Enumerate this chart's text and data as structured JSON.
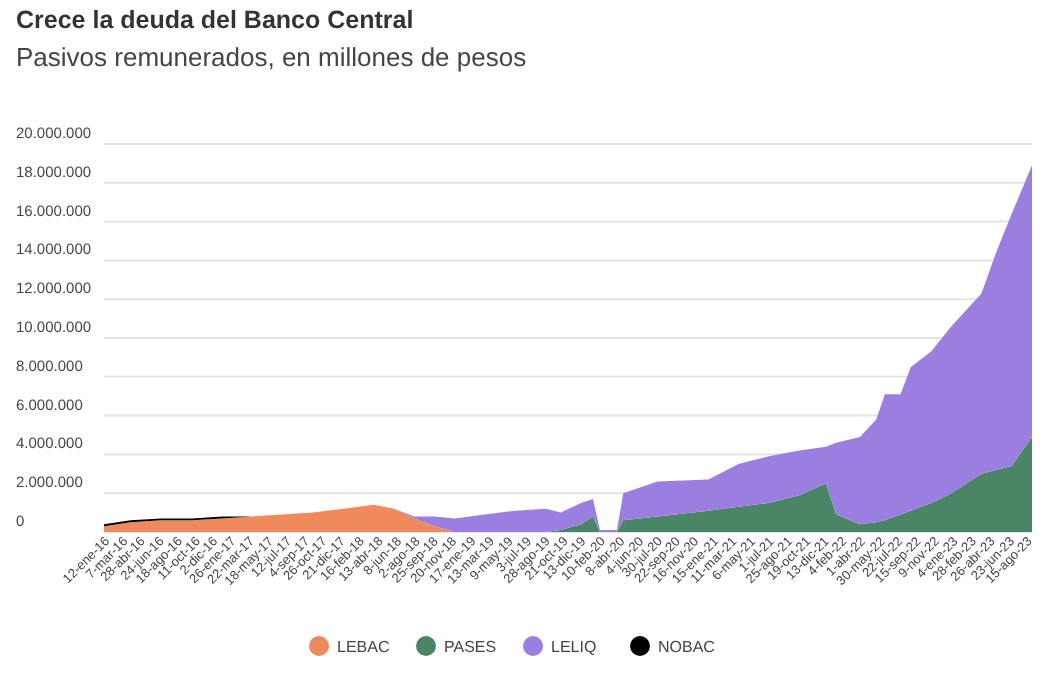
{
  "chart_data": {
    "type": "area",
    "stacked": true,
    "title": "Crece la deuda del Banco Central",
    "subtitle": "Pasivos remunerados, en millones de pesos",
    "x": [
      "2016-01-12",
      "2016-04-01",
      "2016-07-01",
      "2016-10-01",
      "2017-01-01",
      "2017-04-01",
      "2017-07-01",
      "2017-10-01",
      "2018-01-01",
      "2018-04-01",
      "2018-06-01",
      "2018-08-01",
      "2018-10-01",
      "2018-12-01",
      "2019-03-01",
      "2019-06-01",
      "2019-09-01",
      "2019-10-15",
      "2019-12-15",
      "2020-01-20",
      "2020-02-10",
      "2020-04-01",
      "2020-04-20",
      "2020-08-01",
      "2021-01-01",
      "2021-04-01",
      "2021-07-01",
      "2021-10-01",
      "2021-12-20",
      "2022-01-20",
      "2022-04-01",
      "2022-05-20",
      "2022-06-15",
      "2022-08-01",
      "2022-09-01",
      "2022-11-01",
      "2023-01-01",
      "2023-04-01",
      "2023-05-15",
      "2023-07-01",
      "2023-08-31"
    ],
    "series": [
      {
        "name": "LEBAC",
        "color": "#f08a5d",
        "values": [
          300000,
          500000,
          600000,
          600000,
          700000,
          800000,
          900000,
          1000000,
          1200000,
          1400000,
          1200000,
          700000,
          300000,
          0,
          null,
          null,
          null,
          null,
          null,
          null,
          null,
          null,
          null,
          null,
          null,
          null,
          null,
          null,
          null,
          null,
          null,
          null,
          null,
          null,
          null,
          null,
          null,
          null,
          null,
          null,
          null
        ]
      },
      {
        "name": "PASES",
        "color": "#4a8566",
        "values": [
          null,
          null,
          null,
          null,
          null,
          null,
          null,
          null,
          null,
          null,
          null,
          null,
          null,
          null,
          null,
          null,
          0,
          100000,
          400000,
          800000,
          0,
          0,
          600000,
          800000,
          1100000,
          1300000,
          1500000,
          1900000,
          2500000,
          900000,
          400000,
          500000,
          600000,
          900000,
          1100000,
          1500000,
          2000000,
          3000000,
          3200000,
          3400000,
          4900000
        ]
      },
      {
        "name": "LELIQ",
        "color": "#9a7fe0",
        "values": [
          null,
          null,
          null,
          null,
          null,
          null,
          null,
          null,
          null,
          null,
          0,
          100000,
          500000,
          700000,
          900000,
          1100000,
          1200000,
          900000,
          1100000,
          900000,
          100000,
          100000,
          1400000,
          1800000,
          1600000,
          2200000,
          2400000,
          2300000,
          1900000,
          3700000,
          4500000,
          5300000,
          6500000,
          6200000,
          7400000,
          7800000,
          8600000,
          9300000,
          11200000,
          13000000,
          14000000
        ]
      },
      {
        "name": "NOBAC",
        "color": "#000000",
        "values": [
          100000,
          100000,
          100000,
          100000,
          100000,
          0,
          null,
          null,
          null,
          null,
          null,
          null,
          null,
          null,
          null,
          null,
          null,
          null,
          null,
          null,
          null,
          null,
          null,
          null,
          null,
          null,
          null,
          null,
          null,
          null,
          null,
          null,
          null,
          null,
          null,
          null,
          null,
          null,
          null,
          null,
          null
        ]
      }
    ],
    "xlim": [
      "2016-01-12",
      "2023-08-31"
    ],
    "xticks": [
      {
        "value": "2016-01-12",
        "label": "12-ene-16"
      },
      {
        "value": "2016-03-07",
        "label": "7-mar-16"
      },
      {
        "value": "2016-04-28",
        "label": "28-abr-16"
      },
      {
        "value": "2016-06-24",
        "label": "24-jun-16"
      },
      {
        "value": "2016-08-18",
        "label": "18-ago-16"
      },
      {
        "value": "2016-10-11",
        "label": "11-oct-16"
      },
      {
        "value": "2016-12-02",
        "label": "2-dic-16"
      },
      {
        "value": "2017-01-26",
        "label": "26-ene-17"
      },
      {
        "value": "2017-03-22",
        "label": "22-mar-17"
      },
      {
        "value": "2017-05-18",
        "label": "18-may-17"
      },
      {
        "value": "2017-07-12",
        "label": "12-jul-17"
      },
      {
        "value": "2017-09-04",
        "label": "4-sep-17"
      },
      {
        "value": "2017-10-26",
        "label": "26-oct-17"
      },
      {
        "value": "2017-12-21",
        "label": "21-dic-17"
      },
      {
        "value": "2018-02-16",
        "label": "16-feb-18"
      },
      {
        "value": "2018-04-13",
        "label": "13-abr-18"
      },
      {
        "value": "2018-06-08",
        "label": "8-jun-18"
      },
      {
        "value": "2018-08-02",
        "label": "2-ago-18"
      },
      {
        "value": "2018-09-25",
        "label": "25-sep-18"
      },
      {
        "value": "2018-11-20",
        "label": "20-nov-18"
      },
      {
        "value": "2019-01-17",
        "label": "17-ene-19"
      },
      {
        "value": "2019-03-13",
        "label": "13-mar-19"
      },
      {
        "value": "2019-05-09",
        "label": "9-may-19"
      },
      {
        "value": "2019-07-03",
        "label": "3-jul-19"
      },
      {
        "value": "2019-08-28",
        "label": "28-ago-19"
      },
      {
        "value": "2019-10-21",
        "label": "21-oct-19"
      },
      {
        "value": "2019-12-13",
        "label": "13-dic-19"
      },
      {
        "value": "2020-02-10",
        "label": "10-feb-20"
      },
      {
        "value": "2020-04-08",
        "label": "8-abr-20"
      },
      {
        "value": "2020-06-04",
        "label": "4-jun-20"
      },
      {
        "value": "2020-07-30",
        "label": "30-jul-20"
      },
      {
        "value": "2020-09-22",
        "label": "22-sep-20"
      },
      {
        "value": "2020-11-16",
        "label": "16-nov-20"
      },
      {
        "value": "2021-01-15",
        "label": "15-ene-21"
      },
      {
        "value": "2021-03-11",
        "label": "11-mar-21"
      },
      {
        "value": "2021-05-06",
        "label": "6-may-21"
      },
      {
        "value": "2021-07-01",
        "label": "1-jul-21"
      },
      {
        "value": "2021-08-25",
        "label": "25-ago-21"
      },
      {
        "value": "2021-10-19",
        "label": "19-oct-21"
      },
      {
        "value": "2021-12-13",
        "label": "13-dic-21"
      },
      {
        "value": "2022-02-04",
        "label": "4-feb-22"
      },
      {
        "value": "2022-04-01",
        "label": "1-abr-22"
      },
      {
        "value": "2022-05-30",
        "label": "30-may-22"
      },
      {
        "value": "2022-07-22",
        "label": "22-jul-22"
      },
      {
        "value": "2022-09-15",
        "label": "15-sep-22"
      },
      {
        "value": "2022-11-09",
        "label": "9-nov-22"
      },
      {
        "value": "2023-01-04",
        "label": "4-ene-23"
      },
      {
        "value": "2023-02-28",
        "label": "28-feb-23"
      },
      {
        "value": "2023-04-26",
        "label": "26-abr-23"
      },
      {
        "value": "2023-06-23",
        "label": "23-jun-23"
      },
      {
        "value": "2023-08-15",
        "label": "15-ago-23"
      }
    ],
    "ylim": [
      0,
      20000000
    ],
    "yticks": [
      0,
      {
        "value": 2000000,
        "label": "2.000.000"
      },
      {
        "value": 4000000,
        "label": "4.000.000"
      },
      {
        "value": 6000000,
        "label": "6.000.000"
      },
      {
        "value": 8000000,
        "label": "8.000.000"
      },
      {
        "value": 10000000,
        "label": "10.000.000"
      },
      {
        "value": 12000000,
        "label": "12.000.000"
      },
      {
        "value": 14000000,
        "label": "14.000.000"
      },
      {
        "value": 16000000,
        "label": "16.000.000"
      },
      {
        "value": 18000000,
        "label": "18.000.000"
      },
      {
        "value": 20000000,
        "label": "20.000.000"
      }
    ],
    "grid": "y",
    "legend": "bottom"
  }
}
